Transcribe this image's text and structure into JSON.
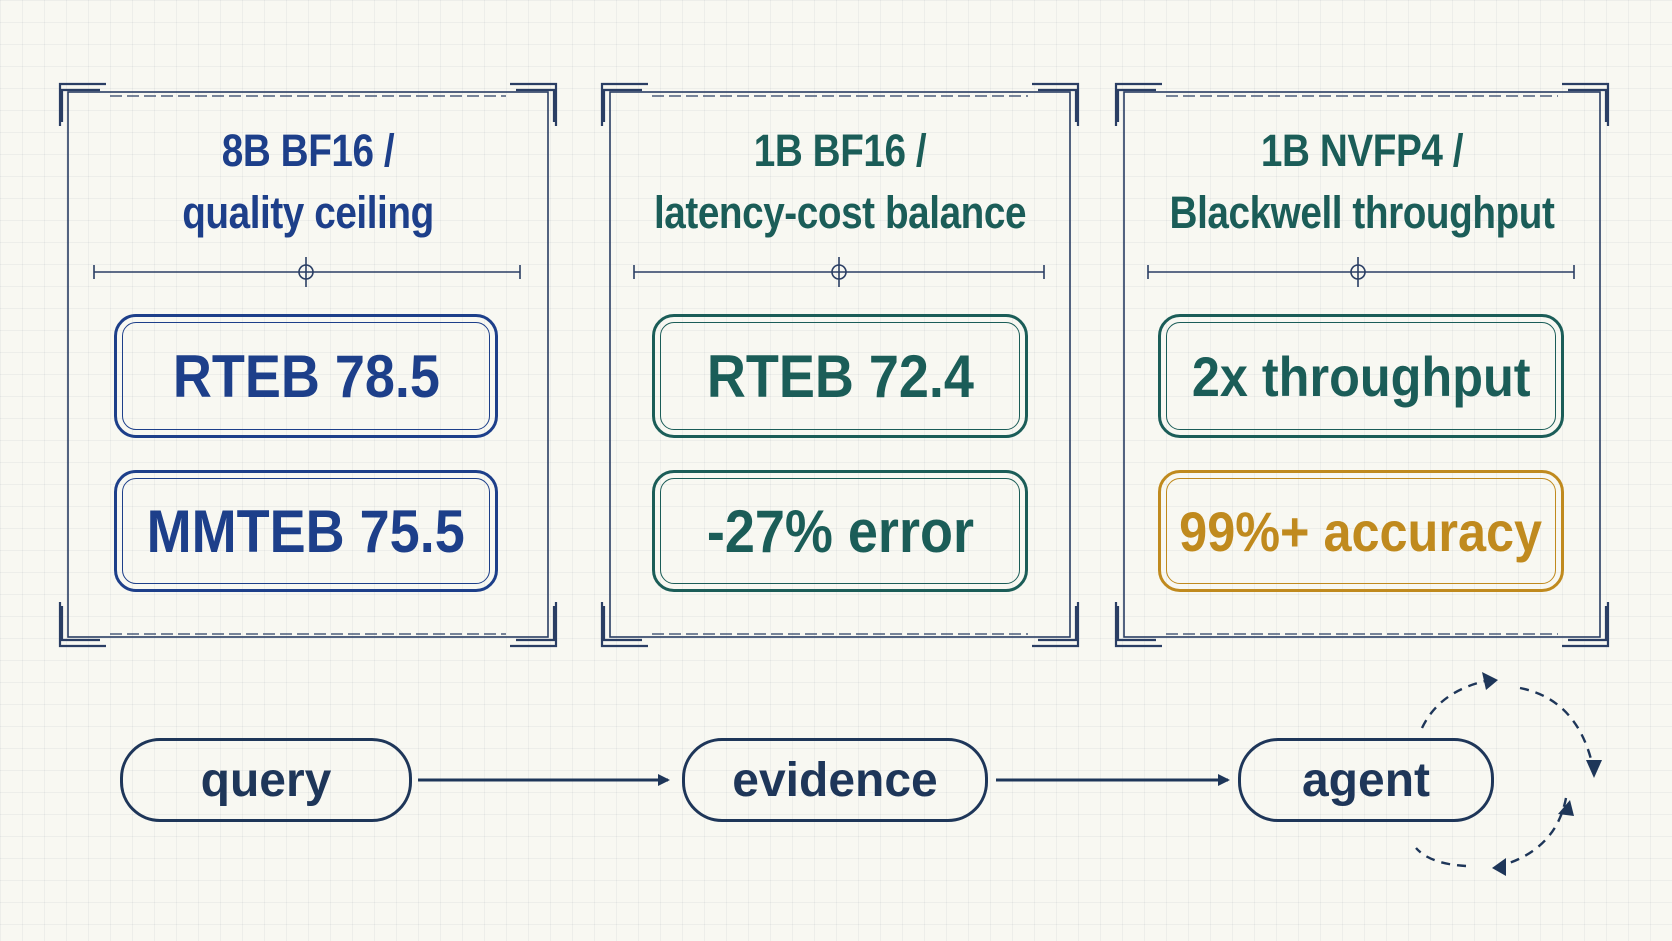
{
  "colors": {
    "frame": "#2a3e64",
    "navy": "#1d3f8a",
    "teal": "#1b5d58",
    "gold": "#c08a1e",
    "flow": "#1e3659",
    "background": "#f8f8f2"
  },
  "cards": [
    {
      "title_line1": "8B BF16 /",
      "title_line2": "quality ceiling",
      "metric1": "RTEB 78.5",
      "metric2": "MMTEB 75.5"
    },
    {
      "title_line1": "1B BF16 /",
      "title_line2": "latency-cost balance",
      "metric1": "RTEB 72.4",
      "metric2": "-27% error"
    },
    {
      "title_line1": "1B NVFP4 /",
      "title_line2": "Blackwell throughput",
      "metric1": "2x throughput",
      "metric2": "99%+ accuracy"
    }
  ],
  "flow": {
    "nodes": [
      "query",
      "evidence",
      "agent"
    ],
    "loop_icon": "cycle-arrows-icon",
    "arrow_icon": "arrow-right-icon"
  }
}
